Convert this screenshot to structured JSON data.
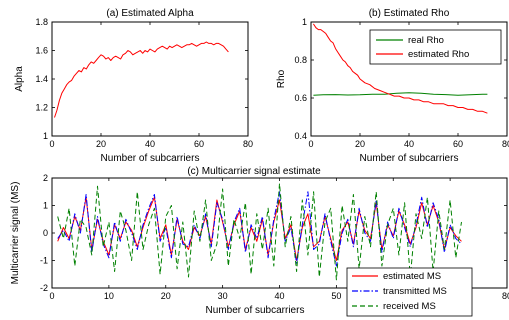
{
  "chart_data": [
    {
      "type": "line",
      "title": "(a) Estimated Alpha",
      "xlabel": "Number of subcarriers",
      "ylabel": "Alpha",
      "xlim": [
        0,
        80
      ],
      "ylim": [
        1,
        1.8
      ],
      "xticks": [
        0,
        20,
        40,
        60,
        80
      ],
      "yticks": [
        1,
        1.2,
        1.4,
        1.6,
        1.8
      ],
      "grid": false,
      "series": [
        {
          "color": "#ff0000",
          "x": [
            1,
            2,
            3,
            4,
            5,
            6,
            7,
            8,
            9,
            10,
            11,
            12,
            13,
            14,
            15,
            16,
            17,
            18,
            19,
            20,
            21,
            22,
            23,
            24,
            25,
            26,
            27,
            28,
            29,
            30,
            31,
            32,
            33,
            34,
            35,
            36,
            37,
            38,
            39,
            40,
            41,
            42,
            43,
            44,
            45,
            46,
            47,
            48,
            49,
            50,
            51,
            52,
            53,
            54,
            55,
            56,
            57,
            58,
            59,
            60,
            61,
            62,
            63,
            64,
            65,
            66,
            67,
            68,
            69,
            70,
            71,
            72
          ],
          "y": [
            1.13,
            1.18,
            1.25,
            1.3,
            1.33,
            1.36,
            1.38,
            1.39,
            1.42,
            1.44,
            1.46,
            1.45,
            1.48,
            1.47,
            1.5,
            1.52,
            1.51,
            1.53,
            1.55,
            1.57,
            1.56,
            1.54,
            1.55,
            1.53,
            1.55,
            1.56,
            1.55,
            1.54,
            1.57,
            1.58,
            1.6,
            1.59,
            1.57,
            1.58,
            1.59,
            1.6,
            1.58,
            1.6,
            1.59,
            1.61,
            1.6,
            1.59,
            1.61,
            1.62,
            1.63,
            1.62,
            1.61,
            1.63,
            1.62,
            1.63,
            1.64,
            1.63,
            1.62,
            1.63,
            1.64,
            1.64,
            1.65,
            1.64,
            1.63,
            1.64,
            1.65,
            1.65,
            1.66,
            1.65,
            1.65,
            1.64,
            1.65,
            1.65,
            1.64,
            1.63,
            1.61,
            1.59
          ]
        }
      ]
    },
    {
      "type": "line",
      "title": "(b) Estimated Rho",
      "xlabel": "Number of subcarriers",
      "ylabel": "Rho",
      "xlim": [
        0,
        80
      ],
      "ylim": [
        0.4,
        1
      ],
      "xticks": [
        0,
        20,
        40,
        60,
        80
      ],
      "yticks": [
        0.4,
        0.6,
        0.8,
        1
      ],
      "grid": false,
      "legend": "top-right",
      "series": [
        {
          "name": "real Rho",
          "color": "#008000",
          "x": [
            1,
            5,
            10,
            15,
            20,
            25,
            30,
            35,
            40,
            45,
            50,
            55,
            60,
            65,
            70,
            72
          ],
          "y": [
            0.615,
            0.617,
            0.618,
            0.616,
            0.617,
            0.62,
            0.62,
            0.625,
            0.628,
            0.625,
            0.62,
            0.618,
            0.615,
            0.617,
            0.62,
            0.62
          ]
        },
        {
          "name": "estimated Rho",
          "color": "#ff0000",
          "x": [
            1,
            2,
            3,
            4,
            5,
            6,
            7,
            8,
            9,
            10,
            11,
            12,
            13,
            14,
            15,
            16,
            17,
            18,
            19,
            20,
            22,
            24,
            26,
            28,
            30,
            32,
            34,
            36,
            38,
            40,
            42,
            44,
            46,
            48,
            50,
            52,
            54,
            56,
            58,
            60,
            62,
            64,
            66,
            68,
            70,
            72
          ],
          "y": [
            0.99,
            0.97,
            0.96,
            0.96,
            0.95,
            0.94,
            0.92,
            0.9,
            0.89,
            0.86,
            0.84,
            0.82,
            0.8,
            0.79,
            0.77,
            0.76,
            0.74,
            0.73,
            0.72,
            0.7,
            0.68,
            0.67,
            0.65,
            0.64,
            0.63,
            0.62,
            0.61,
            0.61,
            0.6,
            0.6,
            0.59,
            0.59,
            0.58,
            0.58,
            0.57,
            0.57,
            0.57,
            0.56,
            0.56,
            0.55,
            0.55,
            0.54,
            0.54,
            0.53,
            0.53,
            0.52
          ]
        }
      ]
    },
    {
      "type": "line",
      "title": "(c) Multicarrier signal estimate",
      "xlabel": "Number of subcarriers",
      "ylabel": "Multicarrier signal (MS)",
      "xlim": [
        0,
        80
      ],
      "ylim": [
        -2,
        2
      ],
      "xticks": [
        0,
        10,
        20,
        30,
        40,
        50,
        60,
        70,
        80
      ],
      "yticks": [
        -2,
        -1,
        0,
        1,
        2
      ],
      "grid": false,
      "legend": "bottom-right",
      "series": [
        {
          "name": "estimated MS",
          "color": "#ff0000",
          "dash": "solid",
          "x": [
            1,
            2,
            3,
            4,
            5,
            6,
            7,
            8,
            9,
            10,
            11,
            12,
            13,
            14,
            15,
            16,
            17,
            18,
            19,
            20,
            21,
            22,
            23,
            24,
            25,
            26,
            27,
            28,
            29,
            30,
            31,
            32,
            33,
            34,
            35,
            36,
            37,
            38,
            39,
            40,
            41,
            42,
            43,
            44,
            45,
            46,
            47,
            48,
            49,
            50,
            51,
            52,
            53,
            54,
            55,
            56,
            57,
            58,
            59,
            60,
            61,
            62,
            63,
            64,
            65,
            66,
            67,
            68,
            69,
            70,
            71,
            72
          ],
          "y": [
            -0.3,
            0.2,
            -0.2,
            0.6,
            0.1,
            1.3,
            -0.6,
            0.5,
            -0.3,
            -0.8,
            0.3,
            -0.2,
            0.4,
            0.1,
            -0.5,
            0.2,
            0.8,
            1.3,
            -0.2,
            0.3,
            -0.8,
            0.5,
            -0.3,
            -0.6,
            0.2,
            -0.1,
            0.6,
            -0.4,
            1.2,
            0.4,
            -0.5,
            0.3,
            0.8,
            -0.6,
            0.2,
            -0.3,
            0.5,
            -0.8,
            0.4,
            1.2,
            -0.2,
            0.3,
            -1,
            0.2,
            0.7,
            -0.5,
            -0.3,
            0.6,
            -0.2,
            -1,
            0.1,
            0.4,
            -0.4,
            0.8,
            0.1,
            -0.2,
            1.1,
            -0.6,
            0.3,
            -0.1,
            0.8,
            0.3,
            -0.4,
            0.2,
            1.1,
            0.3,
            1,
            0.4,
            -0.6,
            0.2,
            -0.1,
            -0.3
          ]
        },
        {
          "name": "transmitted MS",
          "color": "#0000ff",
          "dash": "dashdot",
          "x": [
            1,
            2,
            3,
            4,
            5,
            6,
            7,
            8,
            9,
            10,
            11,
            12,
            13,
            14,
            15,
            16,
            17,
            18,
            19,
            20,
            21,
            22,
            23,
            24,
            25,
            26,
            27,
            28,
            29,
            30,
            31,
            32,
            33,
            34,
            35,
            36,
            37,
            38,
            39,
            40,
            41,
            42,
            43,
            44,
            45,
            46,
            47,
            48,
            49,
            50,
            51,
            52,
            53,
            54,
            55,
            56,
            57,
            58,
            59,
            60,
            61,
            62,
            63,
            64,
            65,
            66,
            67,
            68,
            69,
            70,
            71,
            72
          ],
          "y": [
            -0.2,
            0.1,
            -0.3,
            0.7,
            0,
            1.4,
            -0.7,
            0.6,
            -0.4,
            -0.9,
            0.4,
            -0.3,
            0.5,
            0,
            -0.6,
            0.3,
            0.9,
            1.4,
            -0.3,
            0.2,
            -0.9,
            0.6,
            -0.4,
            -0.5,
            0.3,
            -0.2,
            0.7,
            -0.5,
            1.1,
            0.5,
            -0.6,
            0.4,
            0.9,
            -0.7,
            0.3,
            -0.2,
            0.6,
            -0.9,
            0.5,
            1.5,
            -0.3,
            0.2,
            -1.1,
            0.3,
            1.5,
            -0.6,
            -0.4,
            0.7,
            -0.3,
            -1.2,
            0,
            0.5,
            -0.5,
            0.9,
            0,
            -0.3,
            1.2,
            -0.7,
            0.4,
            -0.2,
            0.9,
            0.2,
            -0.5,
            0.3,
            1.3,
            0.2,
            1.1,
            0.5,
            -0.7,
            0.3,
            -0.2,
            -0.4
          ]
        },
        {
          "name": "received MS",
          "color": "#008000",
          "dash": "dashed",
          "x": [
            1,
            2,
            3,
            4,
            5,
            6,
            7,
            8,
            9,
            10,
            11,
            12,
            13,
            14,
            15,
            16,
            17,
            18,
            19,
            20,
            21,
            22,
            23,
            24,
            25,
            26,
            27,
            28,
            29,
            30,
            31,
            32,
            33,
            34,
            35,
            36,
            37,
            38,
            39,
            40,
            41,
            42,
            43,
            44,
            45,
            46,
            47,
            48,
            49,
            50,
            51,
            52,
            53,
            54,
            55,
            56,
            57,
            58,
            59,
            60,
            61,
            62,
            63,
            64,
            65,
            66,
            67,
            68,
            69,
            70,
            71,
            72
          ],
          "y": [
            0.6,
            -0.2,
            0.9,
            -1.2,
            0.5,
            0.2,
            -0.8,
            1.7,
            -0.5,
            0.4,
            -1.4,
            0.8,
            0.1,
            -1,
            1.5,
            -0.6,
            0.3,
            0.9,
            -1.5,
            0.6,
            1,
            -1.3,
            0.4,
            -1.6,
            0.8,
            -0.3,
            1.2,
            -1,
            -0.4,
            1.6,
            -1.2,
            0.5,
            -0.2,
            1.1,
            -1.5,
            0.7,
            -0.6,
            0.9,
            -1.2,
            1.8,
            -0.5,
            0.6,
            -1.4,
            1.2,
            -0.8,
            1.5,
            -1.6,
            0.4,
            0.9,
            -1.7,
            1,
            -0.3,
            1.4,
            -1.3,
            0.6,
            -0.5,
            1.5,
            -1.2,
            0.3,
            0.9,
            -0.8,
            1.1,
            -1.6,
            0.7,
            -0.2,
            1.3,
            -1.4,
            0.8,
            -0.6,
            1.2,
            -0.9,
            0.4
          ]
        }
      ]
    }
  ]
}
